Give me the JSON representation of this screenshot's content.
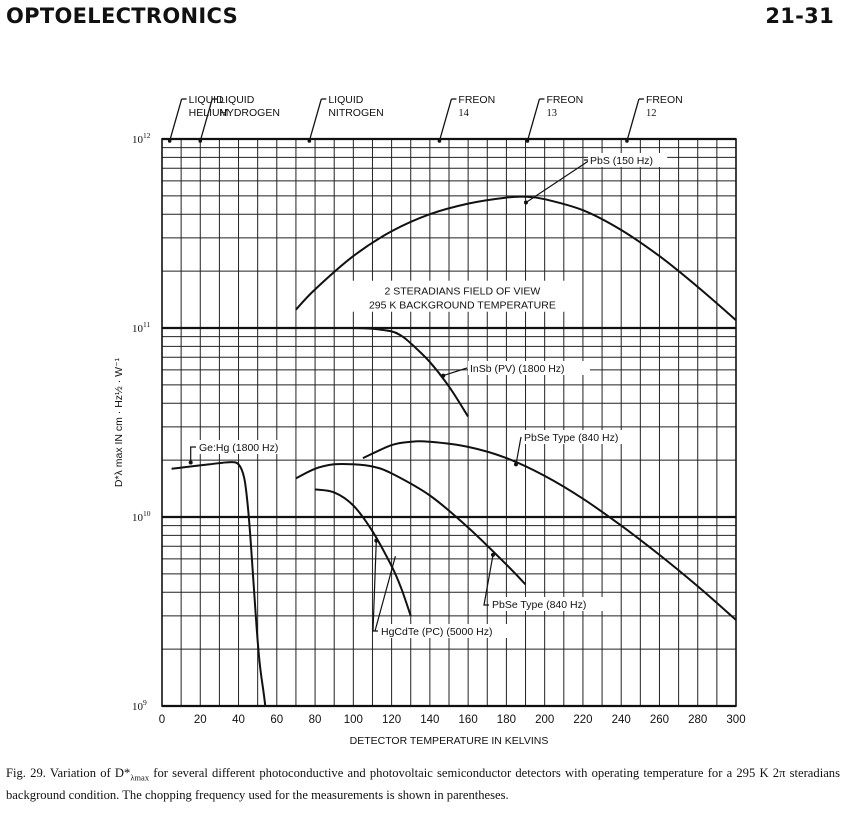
{
  "header": {
    "section_title": "OPTOELECTRONICS",
    "page_number": "21-31"
  },
  "caption": {
    "text_before": "Fig. 29. Variation of D*",
    "subscript": "λmax",
    "text_after": " for several different photoconductive and photovoltaic semiconductor detectors with operating temperature for a 295 K 2π steradians background condition. The chopping frequency used for the measurements is shown in parentheses."
  },
  "chart_data": {
    "type": "line",
    "xlabel": "DETECTOR TEMPERATURE IN KELVINS",
    "ylabel": "D*λ max IN cm · Hz½ · W⁻¹",
    "xlim": [
      0,
      300
    ],
    "ylim": [
      1000000000.0,
      1000000000000.0
    ],
    "yscale": "log",
    "grid": true,
    "x_ticks": [
      0,
      20,
      40,
      60,
      80,
      100,
      120,
      140,
      160,
      180,
      200,
      220,
      240,
      260,
      280,
      300
    ],
    "y_ticks": [
      {
        "value": 1000000000.0,
        "base": "10",
        "exp": "9"
      },
      {
        "value": 10000000000.0,
        "base": "10",
        "exp": "10"
      },
      {
        "value": 100000000000.0,
        "base": "10",
        "exp": "11"
      },
      {
        "value": 1000000000000.0,
        "base": "10",
        "exp": "12"
      }
    ],
    "annotation": [
      "2  STERADIANS FIELD OF VIEW",
      "295 K BACKGROUND TEMPERATURE"
    ],
    "temperature_markers": [
      {
        "lines": [
          "LIQUID",
          "HELIUM"
        ],
        "x": 4
      },
      {
        "lines": [
          "LIQUID",
          "HYDROGEN"
        ],
        "x": 20
      },
      {
        "lines": [
          "LIQUID",
          "NITROGEN"
        ],
        "x": 77
      },
      {
        "lines": [
          "FREON",
          "14"
        ],
        "x": 145
      },
      {
        "lines": [
          "FREON",
          "13"
        ],
        "x": 191
      },
      {
        "lines": [
          "FREON",
          "12"
        ],
        "x": 243
      }
    ],
    "series": [
      {
        "name": "PbS (150 Hz)",
        "x": [
          70,
          80,
          100,
          120,
          140,
          160,
          180,
          190,
          200,
          220,
          240,
          260,
          280,
          300
        ],
        "y": [
          125000000000.0,
          160000000000.0,
          240000000000.0,
          325000000000.0,
          400000000000.0,
          455000000000.0,
          490000000000.0,
          495000000000.0,
          480000000000.0,
          420000000000.0,
          330000000000.0,
          240000000000.0,
          165000000000.0,
          110000000000.0
        ]
      },
      {
        "name": "InSb (PV) (1800 Hz)",
        "x": [
          58,
          70,
          85,
          100,
          110,
          120,
          125,
          130,
          140,
          150,
          160
        ],
        "y": [
          100000000000.0,
          100000000000.0,
          100000000000.0,
          100000000000.0,
          99000000000.0,
          96000000000.0,
          91000000000.0,
          83000000000.0,
          66000000000.0,
          49000000000.0,
          34000000000.0
        ]
      },
      {
        "name": "Ge:Hg (1800 Hz)",
        "x": [
          5,
          15,
          25,
          35,
          40,
          43,
          45,
          47,
          49,
          51,
          53,
          54
        ],
        "y": [
          18000000000.0,
          18500000000.0,
          19000000000.0,
          19500000000.0,
          19000000000.0,
          16000000000.0,
          11000000000.0,
          6000000000.0,
          3000000000.0,
          1700000000.0,
          1200000000.0,
          1000000000.0
        ]
      },
      {
        "name": "PbSe Type (840 Hz)",
        "x": [
          105,
          120,
          130,
          140,
          160,
          180,
          200,
          220,
          240,
          260,
          280,
          300
        ],
        "y": [
          20500000000.0,
          24000000000.0,
          25000000000.0,
          25000000000.0,
          23500000000.0,
          20500000000.0,
          16500000000.0,
          12500000000.0,
          9000000000.0,
          6300000000.0,
          4300000000.0,
          2850000000.0
        ]
      },
      {
        "name": "PbSe Type (840 Hz)",
        "x": [
          70,
          80,
          90,
          100,
          110,
          120,
          140,
          160,
          180,
          190
        ],
        "y": [
          16000000000.0,
          18000000000.0,
          19000000000.0,
          19000000000.0,
          18500000000.0,
          17000000000.0,
          13000000000.0,
          8800000000.0,
          5600000000.0,
          4400000000.0
        ]
      },
      {
        "name": "HgCdTe (PC) (5000 Hz)",
        "x": [
          80,
          90,
          100,
          110,
          120,
          125,
          130
        ],
        "y": [
          14000000000.0,
          13500000000.0,
          11500000000.0,
          8400000000.0,
          5500000000.0,
          4200000000.0,
          3000000000.0
        ]
      }
    ],
    "callouts": [
      {
        "series": 0,
        "text": "PbS (150 Hz)"
      },
      {
        "series": 1,
        "text": "InSb (PV) (1800 Hz)"
      },
      {
        "series": 2,
        "text": "Ge:Hg (1800 Hz)"
      },
      {
        "series": 3,
        "text": "PbSe Type (840 Hz)"
      },
      {
        "series": 4,
        "text": "PbSe Type (840 Hz)"
      },
      {
        "series": 5,
        "text": "HgCdTe (PC) (5000 Hz)"
      }
    ]
  }
}
